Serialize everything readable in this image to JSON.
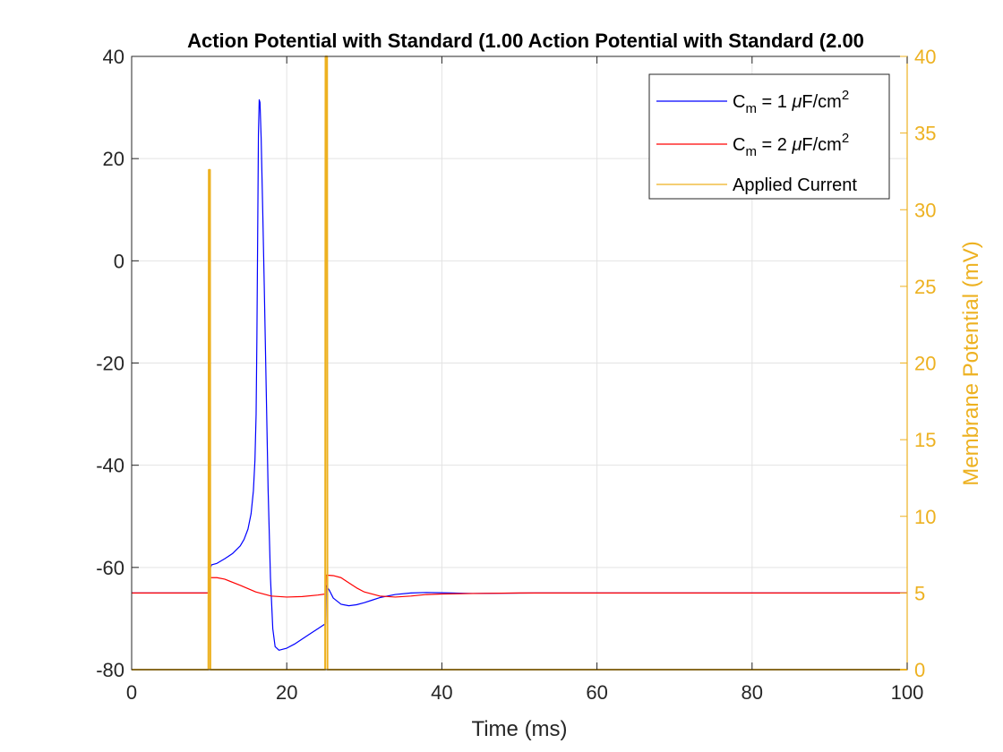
{
  "chart_data": {
    "type": "line",
    "title": "Action Potential with Standard (1.00 Action Potential with Standard (2.00",
    "xlabel": "Time (ms)",
    "ylabel_left": "",
    "ylabel_right": "Membrane Potential (mV)",
    "xlim": [
      0,
      100
    ],
    "ylim_left": [
      -80,
      40
    ],
    "ylim_right": [
      0,
      40
    ],
    "x_ticks": [
      0,
      20,
      40,
      60,
      80,
      100
    ],
    "y_ticks_left": [
      -80,
      -60,
      -40,
      -20,
      0,
      20,
      40
    ],
    "y_ticks_right": [
      0,
      5,
      10,
      15,
      20,
      25,
      30,
      35,
      40
    ],
    "grid": true,
    "legend_position": "top-right",
    "legend": [
      {
        "base": "C",
        "sub": "m",
        "mid": " = 1 ",
        "mu": "μ",
        "after": "F/cm",
        "sup": "2",
        "color": "#0000FF"
      },
      {
        "base": "C",
        "sub": "m",
        "mid": " = 2 ",
        "mu": "μ",
        "after": "F/cm",
        "sup": "2",
        "color": "#FF0000"
      },
      {
        "label": "Applied Current",
        "color": "#EDB120"
      }
    ],
    "series": [
      {
        "axis": "left",
        "color": "#0000FF",
        "points": [
          [
            0,
            -65
          ],
          [
            10,
            -65
          ],
          [
            10.05,
            -60.5
          ],
          [
            10.3,
            -59.5
          ],
          [
            11,
            -59.2
          ],
          [
            12,
            -58.3
          ],
          [
            13,
            -57.3
          ],
          [
            14,
            -55.8
          ],
          [
            14.5,
            -54.5
          ],
          [
            15,
            -52.5
          ],
          [
            15.4,
            -49.5
          ],
          [
            15.7,
            -45
          ],
          [
            15.9,
            -39
          ],
          [
            16.05,
            -30
          ],
          [
            16.15,
            -15
          ],
          [
            16.25,
            5
          ],
          [
            16.35,
            25
          ],
          [
            16.45,
            31.5
          ],
          [
            16.55,
            31
          ],
          [
            16.7,
            24
          ],
          [
            16.9,
            10
          ],
          [
            17.1,
            -5
          ],
          [
            17.35,
            -25
          ],
          [
            17.6,
            -45
          ],
          [
            17.9,
            -62
          ],
          [
            18.2,
            -72
          ],
          [
            18.5,
            -75.5
          ],
          [
            19,
            -76.2
          ],
          [
            20,
            -75.8
          ],
          [
            21,
            -75
          ],
          [
            22,
            -74
          ],
          [
            23,
            -73
          ],
          [
            24,
            -72
          ],
          [
            25,
            -71
          ],
          [
            25.05,
            -63.5
          ],
          [
            25.5,
            -64.5
          ],
          [
            26,
            -66
          ],
          [
            27,
            -67.2
          ],
          [
            28,
            -67.5
          ],
          [
            29,
            -67.3
          ],
          [
            30,
            -66.9
          ],
          [
            31,
            -66.4
          ],
          [
            32,
            -65.9
          ],
          [
            34,
            -65.3
          ],
          [
            36,
            -65.0
          ],
          [
            38,
            -64.9
          ],
          [
            40,
            -64.95
          ],
          [
            44,
            -65.1
          ],
          [
            48,
            -65.05
          ],
          [
            52,
            -65
          ],
          [
            100,
            -65
          ]
        ]
      },
      {
        "axis": "left",
        "color": "#FF0000",
        "points": [
          [
            0,
            -65
          ],
          [
            10,
            -65
          ],
          [
            10.05,
            -62
          ],
          [
            11,
            -62
          ],
          [
            12,
            -62.3
          ],
          [
            14,
            -63.5
          ],
          [
            16,
            -64.8
          ],
          [
            18,
            -65.6
          ],
          [
            20,
            -65.8
          ],
          [
            22,
            -65.7
          ],
          [
            24,
            -65.4
          ],
          [
            25,
            -65.2
          ],
          [
            25.05,
            -61.5
          ],
          [
            26,
            -61.6
          ],
          [
            27,
            -62
          ],
          [
            28,
            -63
          ],
          [
            29,
            -64
          ],
          [
            30,
            -64.8
          ],
          [
            32,
            -65.6
          ],
          [
            34,
            -65.8
          ],
          [
            36,
            -65.6
          ],
          [
            38,
            -65.3
          ],
          [
            40,
            -65.2
          ],
          [
            44,
            -65.1
          ],
          [
            50,
            -65
          ],
          [
            100,
            -65
          ]
        ]
      },
      {
        "axis": "right",
        "color": "#EDB120",
        "points": [
          [
            0,
            0
          ],
          [
            9.9,
            0
          ],
          [
            9.95,
            32.6
          ],
          [
            10.1,
            32.6
          ],
          [
            10.15,
            0
          ],
          [
            24.95,
            0
          ],
          [
            25.0,
            40
          ],
          [
            25.2,
            40
          ],
          [
            25.25,
            0
          ],
          [
            100,
            0
          ]
        ]
      }
    ]
  }
}
